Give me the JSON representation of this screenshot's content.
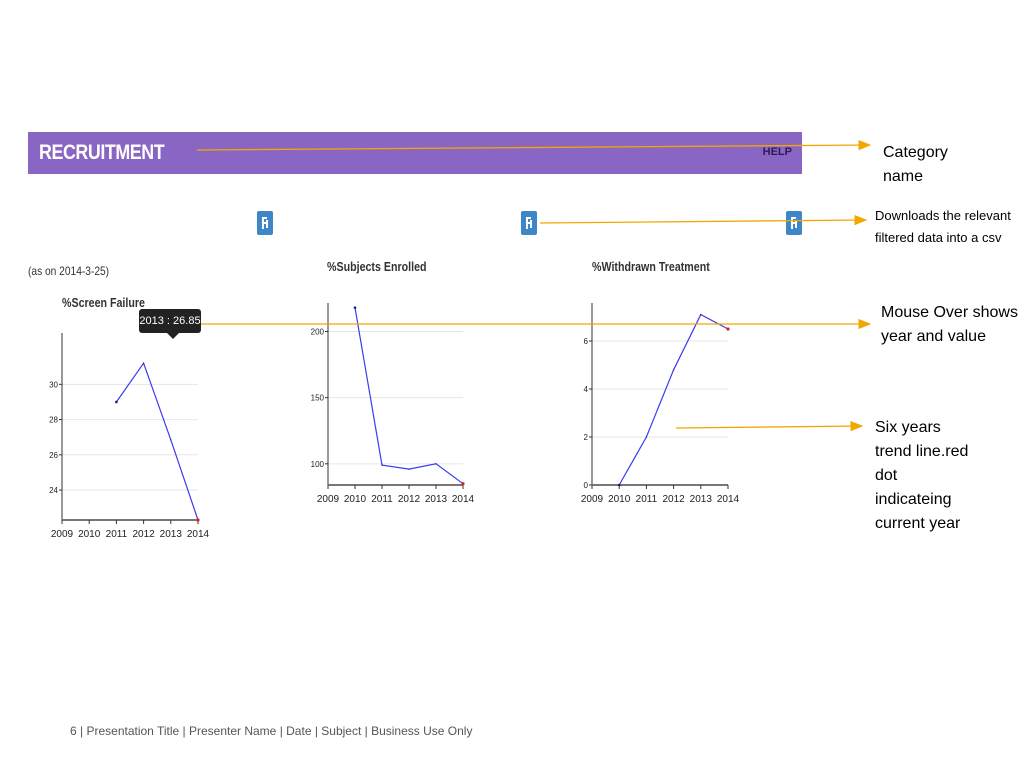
{
  "header": {
    "title": "RECRUITMENT",
    "help_label": "HELP",
    "bg_color": "#8a66c4"
  },
  "as_of": "(as on 2014-3-25)",
  "download_icon": "download-csv-icon",
  "tooltip": {
    "text": "2013 : 26.85"
  },
  "annotations": {
    "category": [
      "Category",
      "name"
    ],
    "downloads": [
      "Downloads the relevant",
      "filtered data into a csv"
    ],
    "mouseover": [
      "Mouse Over shows",
      "year and value"
    ],
    "trend": [
      "Six years",
      "trend line.red",
      "dot",
      "indicateing",
      "current year"
    ]
  },
  "footer": {
    "page_number": "6",
    "text": "| Presentation Title | Presenter Name | Date | Subject | Business Use Only"
  },
  "accent_colors": {
    "arrow": "#f0a800",
    "line": "#3b3bf0",
    "current_year_dot": "#e02020"
  },
  "chart_data": [
    {
      "type": "line",
      "title": "%Screen Failure",
      "categories": [
        "2009",
        "2010",
        "2011",
        "2012",
        "2013",
        "2014"
      ],
      "series": [
        {
          "values": [
            null,
            null,
            29.0,
            31.2,
            26.85,
            22.3
          ]
        }
      ],
      "yticks": [
        "24",
        "26",
        "28",
        "30"
      ],
      "ylim": [
        22.3,
        32.8
      ],
      "grid": true
    },
    {
      "type": "line",
      "title": "%Subjects Enrolled",
      "categories": [
        "2009",
        "2010",
        "2011",
        "2012",
        "2013",
        "2014"
      ],
      "series": [
        {
          "values": [
            null,
            218,
            99,
            96,
            100,
            85
          ]
        }
      ],
      "yticks": [
        "100",
        "150",
        "200"
      ],
      "ylim": [
        84,
        220
      ],
      "grid": true
    },
    {
      "type": "line",
      "title": "%Withdrawn Treatment",
      "categories": [
        "2009",
        "2010",
        "2011",
        "2012",
        "2013",
        "2014"
      ],
      "series": [
        {
          "values": [
            null,
            0,
            2,
            4.8,
            7.1,
            6.5
          ]
        }
      ],
      "yticks": [
        "0",
        "2",
        "4",
        "6"
      ],
      "ylim": [
        0,
        7.5
      ],
      "grid": true
    }
  ]
}
